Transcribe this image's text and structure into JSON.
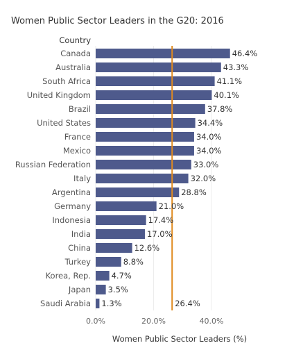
{
  "chart_data": {
    "type": "bar",
    "orientation": "horizontal",
    "title": "Women Public Sector Leaders in the G20: 2016",
    "category_header": "Country",
    "xlabel": "Women Public Sector Leaders (%)",
    "categories": [
      "Canada",
      "Australia",
      "South Africa",
      "United Kingdom",
      "Brazil",
      "United States",
      "France",
      "Mexico",
      "Russian Federation",
      "Italy",
      "Argentina",
      "Germany",
      "Indonesia",
      "India",
      "China",
      "Turkey",
      "Korea, Rep.",
      "Japan",
      "Saudi Arabia"
    ],
    "values": [
      46.4,
      43.3,
      41.1,
      40.1,
      37.8,
      34.4,
      34.0,
      34.0,
      33.0,
      32.0,
      28.8,
      21.0,
      17.4,
      17.0,
      12.6,
      8.8,
      4.7,
      3.5,
      1.3
    ],
    "value_labels": [
      "46.4%",
      "43.3%",
      "41.1%",
      "40.1%",
      "37.8%",
      "34.4%",
      "34.0%",
      "34.0%",
      "33.0%",
      "32.0%",
      "28.8%",
      "21.0%",
      "17.4%",
      "17.0%",
      "12.6%",
      "8.8%",
      "4.7%",
      "3.5%",
      "1.3%"
    ],
    "xticks": [
      0,
      20,
      40
    ],
    "xtick_labels": [
      "0.0%",
      "20.0%",
      "40.0%"
    ],
    "xlim": [
      0,
      48
    ],
    "reference_line": {
      "value": 26.4,
      "label": "26.4%",
      "color": "#e08a1e"
    },
    "bar_color": "#4e5a8c",
    "grid": true,
    "legend": "none"
  }
}
